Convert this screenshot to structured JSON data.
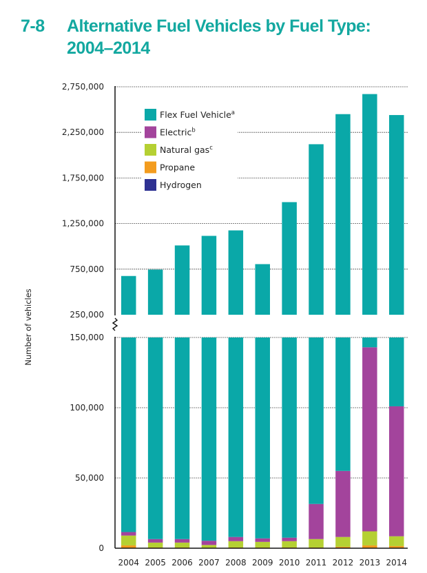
{
  "figure": {
    "number": "7-8",
    "title_line1": "Alternative Fuel Vehicles by Fuel Type:",
    "title_line2": "2004–2014"
  },
  "colors": {
    "title": "#13a8a0",
    "flex_fuel": "#0aa8a8",
    "electric": "#a3449c",
    "natural_gas": "#b5d033",
    "propane": "#f39c1e",
    "hydrogen": "#2e3192",
    "gridline": "#555555",
    "axis": "#111111"
  },
  "chart_data": {
    "type": "bar",
    "stacked": true,
    "broken_axis": true,
    "title": "Alternative Fuel Vehicles by Fuel Type: 2004–2014",
    "xlabel": "",
    "ylabel": "Number of vehicles",
    "categories": [
      "2004",
      "2005",
      "2006",
      "2007",
      "2008",
      "2009",
      "2010",
      "2011",
      "2012",
      "2013",
      "2014"
    ],
    "upper_panel": {
      "ylim": [
        250000,
        2750000
      ],
      "yticks": [
        250000,
        750000,
        1250000,
        1750000,
        2250000,
        2750000
      ],
      "ytick_labels": [
        "250,000",
        "750,000",
        "1,250,000",
        "1,750,000",
        "2,250,000",
        "2,750,000"
      ]
    },
    "lower_panel": {
      "ylim": [
        0,
        150000
      ],
      "yticks": [
        0,
        50000,
        100000,
        150000
      ],
      "ytick_labels": [
        "0",
        "50,000",
        "100,000",
        "150,000"
      ]
    },
    "series": [
      {
        "name": "Hydrogen",
        "key": "hydrogen",
        "values": [
          0,
          0,
          0,
          0,
          0,
          0,
          0,
          0,
          0,
          0,
          0
        ]
      },
      {
        "name": "Propane",
        "key": "propane",
        "values": [
          2000,
          500,
          500,
          300,
          500,
          500,
          500,
          500,
          1000,
          2000,
          1500
        ]
      },
      {
        "name": "Natural gas",
        "key": "natural_gas",
        "values": [
          7000,
          3500,
          3500,
          2000,
          4500,
          4000,
          4500,
          6000,
          7000,
          10000,
          7000
        ]
      },
      {
        "name": "Electric",
        "key": "electric",
        "values": [
          2500,
          2500,
          2500,
          3000,
          3000,
          2500,
          2500,
          25000,
          47000,
          131000,
          92500
        ]
      },
      {
        "name": "Flex Fuel Vehicle",
        "key": "flex_fuel",
        "values": [
          663500,
          738500,
          1003500,
          1109700,
          1167000,
          798000,
          1477500,
          2088500,
          2395000,
          2527000,
          2339000
        ]
      }
    ],
    "totals": [
      675000,
      745000,
      1010000,
      1115000,
      1175000,
      805000,
      1485000,
      2120000,
      2450000,
      2670000,
      2440000
    ],
    "legend": {
      "position": "top-left",
      "entries": [
        {
          "label": "Flex Fuel Vehicle",
          "sup": "a",
          "key": "flex_fuel"
        },
        {
          "label": "Electric",
          "sup": "b",
          "key": "electric"
        },
        {
          "label": "Natural gas",
          "sup": "c",
          "key": "natural_gas"
        },
        {
          "label": "Propane",
          "sup": "",
          "key": "propane"
        },
        {
          "label": "Hydrogen",
          "sup": "",
          "key": "hydrogen"
        }
      ]
    },
    "grid": "horizontal-dashed"
  }
}
